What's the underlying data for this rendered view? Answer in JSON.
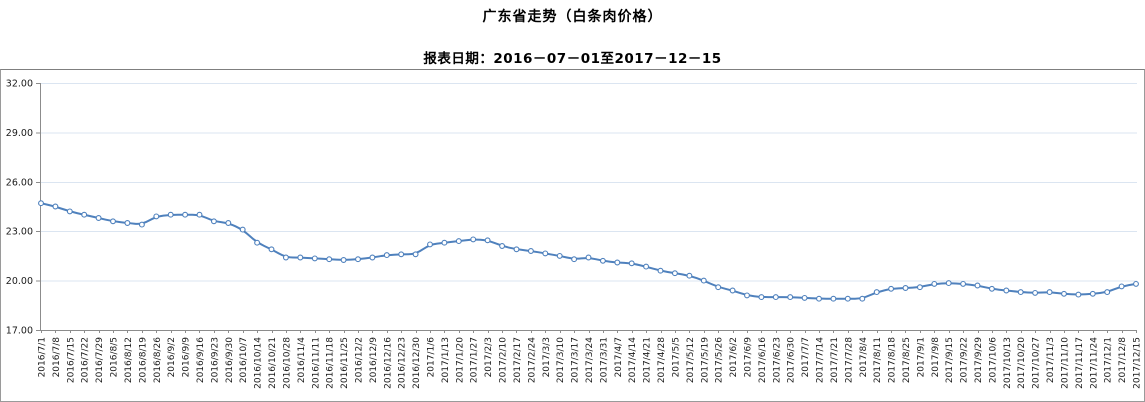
{
  "header": {
    "title": "广东省走势（白条肉价格）",
    "subtitle": "报表日期：2016－07－01至2017－12－15"
  },
  "chart_data": {
    "type": "line",
    "title": "广东省走势（白条肉价格）",
    "subtitle": "报表日期：2016－07－01至2017－12－15",
    "xlabel": "",
    "ylabel": "",
    "ylim": [
      17,
      32
    ],
    "yticks": [
      17,
      20,
      23,
      26,
      29,
      32
    ],
    "ytick_labels": [
      "17.00",
      "20.00",
      "23.00",
      "26.00",
      "29.00",
      "32.00"
    ],
    "grid": true,
    "legend_position": "none",
    "x": [
      "2016/7/1",
      "2016/7/8",
      "2016/7/15",
      "2016/7/22",
      "2016/7/29",
      "2016/8/5",
      "2016/8/12",
      "2016/8/19",
      "2016/8/26",
      "2016/9/2",
      "2016/9/9",
      "2016/9/16",
      "2016/9/23",
      "2016/9/30",
      "2016/10/7",
      "2016/10/14",
      "2016/10/21",
      "2016/10/28",
      "2016/11/4",
      "2016/11/11",
      "2016/11/18",
      "2016/11/25",
      "2016/12/2",
      "2016/12/9",
      "2016/12/16",
      "2016/12/23",
      "2016/12/30",
      "2017/1/6",
      "2017/1/13",
      "2017/1/20",
      "2017/1/27",
      "2017/2/3",
      "2017/2/10",
      "2017/2/17",
      "2017/2/24",
      "2017/3/3",
      "2017/3/10",
      "2017/3/17",
      "2017/3/24",
      "2017/3/31",
      "2017/4/7",
      "2017/4/14",
      "2017/4/21",
      "2017/4/28",
      "2017/5/5",
      "2017/5/12",
      "2017/5/19",
      "2017/5/26",
      "2017/6/2",
      "2017/6/9",
      "2017/6/16",
      "2017/6/23",
      "2017/6/30",
      "2017/7/7",
      "2017/7/14",
      "2017/7/21",
      "2017/7/28",
      "2017/8/4",
      "2017/8/11",
      "2017/8/18",
      "2017/8/25",
      "2017/9/1",
      "2017/9/8",
      "2017/9/15",
      "2017/9/22",
      "2017/9/29",
      "2017/10/6",
      "2017/10/13",
      "2017/10/20",
      "2017/10/27",
      "2017/11/3",
      "2017/11/10",
      "2017/11/17",
      "2017/11/24",
      "2017/12/1",
      "2017/12/8",
      "2017/12/15"
    ],
    "values": [
      24.7,
      24.5,
      24.2,
      24.0,
      23.8,
      23.6,
      23.5,
      23.4,
      23.9,
      24.0,
      24.0,
      24.0,
      23.6,
      23.5,
      23.1,
      22.3,
      21.9,
      21.4,
      21.4,
      21.35,
      21.3,
      21.25,
      21.3,
      21.4,
      21.55,
      21.6,
      21.6,
      22.2,
      22.3,
      22.4,
      22.5,
      22.45,
      22.1,
      21.9,
      21.8,
      21.65,
      21.5,
      21.3,
      21.4,
      21.2,
      21.1,
      21.05,
      20.85,
      20.6,
      20.45,
      20.3,
      20.0,
      19.6,
      19.4,
      19.1,
      19.0,
      19.0,
      19.0,
      18.95,
      18.9,
      18.9,
      18.9,
      18.9,
      19.3,
      19.5,
      19.55,
      19.6,
      19.8,
      19.85,
      19.8,
      19.7,
      19.5,
      19.4,
      19.3,
      19.25,
      19.3,
      19.2,
      19.15,
      19.2,
      19.3,
      19.65,
      19.8
    ],
    "colors": {
      "line": "#4f81bd",
      "marker_fill": "#ffffff",
      "gridline": "#dbe5f1",
      "axis": "#8c8c8c",
      "tick_label": "#1a1a1a"
    }
  }
}
